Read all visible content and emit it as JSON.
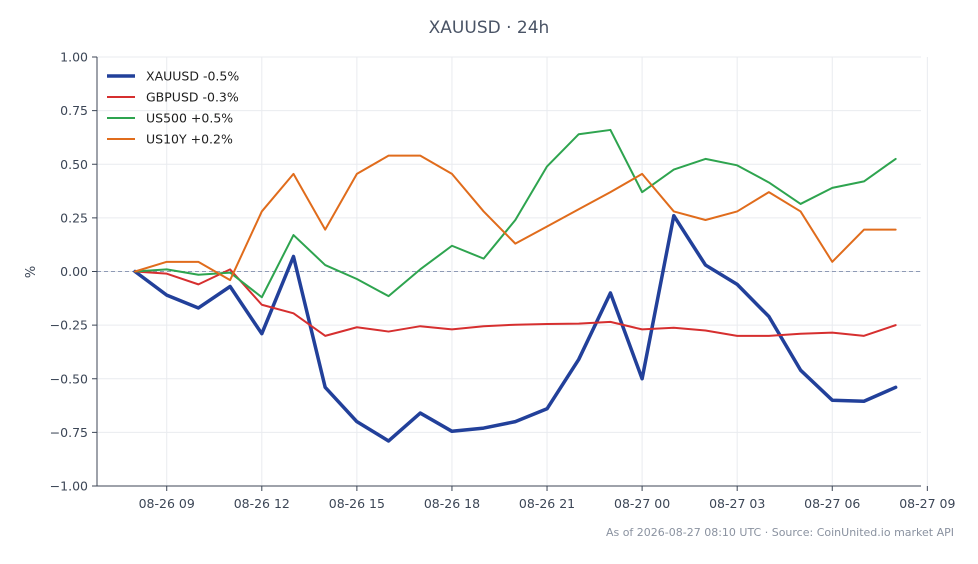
{
  "title": "XAUUSD · 24h",
  "footer": "As of 2026-08-27 08:10 UTC · Source: CoinUnited.io market API",
  "chart_data": {
    "type": "line",
    "title": "XAUUSD · 24h",
    "xlabel": "",
    "ylabel": "%",
    "x_start_hour": 8,
    "x_step_hours": 1,
    "xlim": [
      6.8,
      32.8
    ],
    "ylim": [
      -1.0,
      1.0
    ],
    "x_ticks": [
      9,
      12,
      15,
      18,
      21,
      24,
      27,
      30,
      33
    ],
    "x_tick_labels": [
      "08-26 09",
      "08-26 12",
      "08-26 15",
      "08-26 18",
      "08-26 21",
      "08-27 00",
      "08-27 03",
      "08-27 06",
      "08-27 09"
    ],
    "y_ticks": [
      -1.0,
      -0.75,
      -0.5,
      -0.25,
      0.0,
      0.25,
      0.5,
      0.75,
      1.0
    ],
    "y_tick_labels": [
      "−1.00",
      "−0.75",
      "−0.50",
      "−0.25",
      "0.00",
      "0.25",
      "0.50",
      "0.75",
      "1.00"
    ],
    "zero_line": true,
    "grid": true,
    "legend_position": "top-left",
    "series": [
      {
        "name": "XAUUSD -0.5%",
        "color": "#22409a",
        "line_width": 3.5,
        "values": [
          0.0,
          -0.11,
          -0.17,
          -0.07,
          -0.29,
          0.07,
          -0.54,
          -0.7,
          -0.79,
          -0.66,
          -0.745,
          -0.73,
          -0.7,
          -0.64,
          -0.41,
          -0.1,
          -0.5,
          0.26,
          0.03,
          -0.06,
          -0.21,
          -0.46,
          -0.6,
          -0.605,
          -0.54
        ]
      },
      {
        "name": "GBPUSD -0.3%",
        "color": "#d62f2f",
        "line_width": 2,
        "values": [
          0.0,
          -0.01,
          -0.06,
          0.01,
          -0.155,
          -0.195,
          -0.3,
          -0.26,
          -0.28,
          -0.255,
          -0.27,
          -0.255,
          -0.248,
          -0.245,
          -0.243,
          -0.235,
          -0.27,
          -0.262,
          -0.275,
          -0.3,
          -0.3,
          -0.29,
          -0.285,
          -0.3,
          -0.25
        ]
      },
      {
        "name": "US500 +0.5%",
        "color": "#2ea44f",
        "line_width": 2,
        "values": [
          0.0,
          0.01,
          -0.015,
          -0.005,
          -0.12,
          0.17,
          0.03,
          -0.035,
          -0.115,
          0.01,
          0.12,
          0.06,
          0.24,
          0.49,
          0.64,
          0.66,
          0.37,
          0.475,
          0.525,
          0.495,
          0.415,
          0.315,
          0.39,
          0.42,
          0.525
        ]
      },
      {
        "name": "US10Y +0.2%",
        "color": "#e06c1c",
        "line_width": 2,
        "values": [
          0.0,
          0.045,
          0.045,
          -0.04,
          0.28,
          0.455,
          0.195,
          0.455,
          0.54,
          0.54,
          0.455,
          0.28,
          0.13,
          0.21,
          0.29,
          0.37,
          0.455,
          0.28,
          0.24,
          0.28,
          0.37,
          0.28,
          0.045,
          0.195,
          0.195
        ]
      }
    ]
  }
}
